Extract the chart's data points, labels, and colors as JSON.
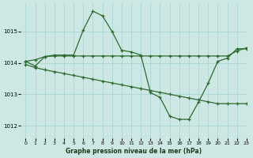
{
  "title": "Graphe pression niveau de la mer (hPa)",
  "bg_color": "#cde8e4",
  "grid_color": "#b0d8d4",
  "line_color": "#2d6a2d",
  "xlim": [
    -0.5,
    23
  ],
  "ylim": [
    1011.6,
    1015.9
  ],
  "yticks": [
    1012,
    1013,
    1014,
    1015
  ],
  "xticks": [
    0,
    1,
    2,
    3,
    4,
    5,
    6,
    7,
    8,
    9,
    10,
    11,
    12,
    13,
    14,
    15,
    16,
    17,
    18,
    19,
    20,
    21,
    22,
    23
  ],
  "series": [
    {
      "x": [
        0,
        1,
        2,
        3,
        4,
        5,
        6,
        7,
        8,
        9,
        10,
        11,
        12,
        13,
        14,
        15,
        16,
        17,
        18,
        19,
        20,
        21,
        22,
        23
      ],
      "y": [
        1014.05,
        1013.9,
        1014.2,
        1014.25,
        1014.25,
        1014.25,
        1015.05,
        1015.65,
        1015.5,
        1015.0,
        1014.4,
        1014.35,
        1014.25,
        1013.05,
        1012.9,
        1012.3,
        1012.2,
        1012.2,
        1012.75,
        1013.35,
        1014.05,
        1014.15,
        1014.45,
        1014.45
      ]
    },
    {
      "x": [
        0,
        1,
        2,
        3,
        4,
        5,
        6,
        7,
        8,
        9,
        10,
        11,
        12,
        13,
        14,
        15,
        16,
        17,
        18,
        19,
        20,
        21,
        22,
        23
      ],
      "y": [
        1014.05,
        1014.1,
        1014.2,
        1014.22,
        1014.22,
        1014.22,
        1014.22,
        1014.22,
        1014.22,
        1014.22,
        1014.22,
        1014.22,
        1014.22,
        1014.22,
        1014.22,
        1014.22,
        1014.22,
        1014.22,
        1014.22,
        1014.22,
        1014.22,
        1014.22,
        1014.38,
        1014.48
      ]
    },
    {
      "x": [
        0,
        1,
        2,
        3,
        4,
        5,
        6,
        7,
        8,
        9,
        10,
        11,
        12,
        13,
        14,
        15,
        16,
        17,
        18,
        19,
        20,
        21,
        22,
        23
      ],
      "y": [
        1013.95,
        1013.85,
        1013.78,
        1013.72,
        1013.66,
        1013.6,
        1013.54,
        1013.48,
        1013.42,
        1013.36,
        1013.3,
        1013.24,
        1013.18,
        1013.12,
        1013.06,
        1013.0,
        1012.94,
        1012.88,
        1012.82,
        1012.76,
        1012.7,
        1012.7,
        1012.7,
        1012.7
      ]
    }
  ]
}
